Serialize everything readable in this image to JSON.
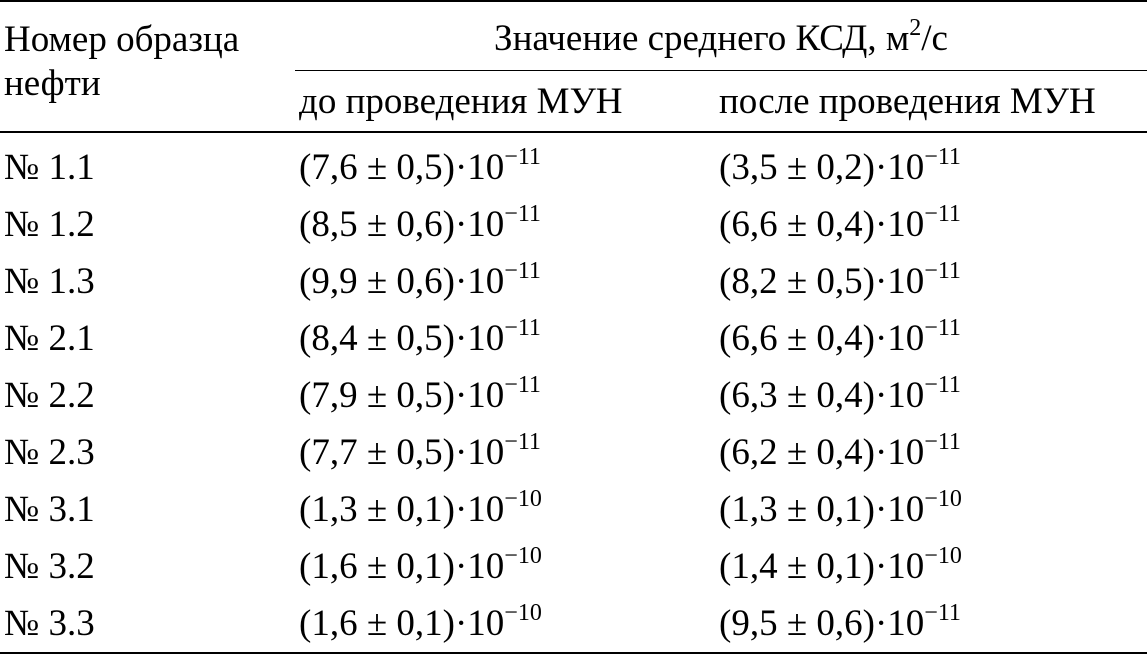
{
  "header": {
    "sample_col_line1": "Номер образца",
    "sample_col_line2": "нефти",
    "group_title": "Значение среднего КСД, м",
    "group_unit_exp": "2",
    "group_unit_tail": "/с",
    "before_label": "до проведения МУН",
    "after_label": "после проведения МУН"
  },
  "rows": [
    {
      "sample": "№ 1.1",
      "before": "(7,6 ± 0,5)·10",
      "before_exp": "−11",
      "after": "(3,5 ± 0,2)·10",
      "after_exp": "−11"
    },
    {
      "sample": "№ 1.2",
      "before": "(8,5 ± 0,6)·10",
      "before_exp": "−11",
      "after": "(6,6 ± 0,4)·10",
      "after_exp": "−11"
    },
    {
      "sample": "№ 1.3",
      "before": "(9,9 ± 0,6)·10",
      "before_exp": "−11",
      "after": "(8,2 ± 0,5)·10",
      "after_exp": "−11"
    },
    {
      "sample": "№ 2.1",
      "before": "(8,4 ± 0,5)·10",
      "before_exp": "−11",
      "after": "(6,6 ± 0,4)·10",
      "after_exp": "−11"
    },
    {
      "sample": "№ 2.2",
      "before": "(7,9 ± 0,5)·10",
      "before_exp": "−11",
      "after": "(6,3 ± 0,4)·10",
      "after_exp": "−11"
    },
    {
      "sample": "№ 2.3",
      "before": "(7,7 ± 0,5)·10",
      "before_exp": "−11",
      "after": "(6,2 ± 0,4)·10",
      "after_exp": "−11"
    },
    {
      "sample": "№ 3.1",
      "before": "(1,3 ± 0,1)·10",
      "before_exp": "−10",
      "after": "(1,3 ± 0,1)·10",
      "after_exp": "−10"
    },
    {
      "sample": "№ 3.2",
      "before": "(1,6 ± 0,1)·10",
      "before_exp": "−10",
      "after": "(1,4 ± 0,1)·10",
      "after_exp": "−10"
    },
    {
      "sample": "№ 3.3",
      "before": "(1,6 ± 0,1)·10",
      "before_exp": "−10",
      "after": "(9,5 ± 0,6)·10",
      "after_exp": "−11"
    }
  ]
}
